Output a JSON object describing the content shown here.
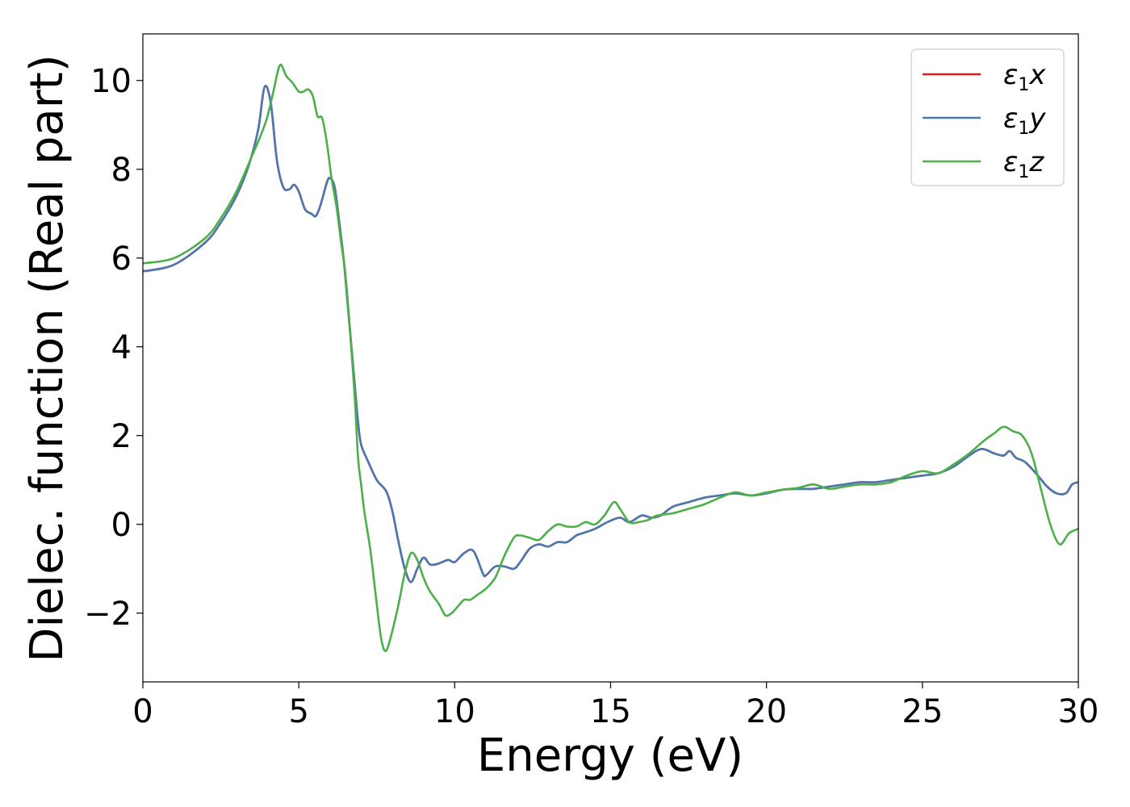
{
  "chart_data": {
    "type": "line",
    "title": "",
    "xlabel": "Energy (eV)",
    "ylabel": "Dielec. function (Real part)",
    "xlim": [
      0,
      30
    ],
    "ylim": [
      -3.55,
      11.05
    ],
    "xticks": [
      0,
      5,
      10,
      15,
      20,
      25,
      30
    ],
    "xtick_labels": [
      "0",
      "5",
      "10",
      "15",
      "20",
      "25",
      "30"
    ],
    "yticks": [
      -2,
      0,
      2,
      4,
      6,
      8,
      10
    ],
    "ytick_labels": [
      "−2",
      "0",
      "2",
      "4",
      "6",
      "8",
      "10"
    ],
    "grid": false,
    "legend_position": "top-right",
    "series": [
      {
        "name": "ε1x",
        "legend_symbol": "ε",
        "legend_sub": "1",
        "legend_var": "x",
        "color": "#e41a1c",
        "x": [
          0,
          1,
          2,
          2.5,
          3,
          3.4,
          3.7,
          3.9,
          4.1,
          4.3,
          4.5,
          4.7,
          4.85,
          5.0,
          5.2,
          5.4,
          5.55,
          5.7,
          5.9,
          6.0,
          6.15,
          6.3,
          6.45,
          6.6,
          6.75,
          6.9,
          7.0,
          7.2,
          7.5,
          7.8,
          8.0,
          8.2,
          8.4,
          8.6,
          8.8,
          9.0,
          9.2,
          9.4,
          9.6,
          9.8,
          10.0,
          10.3,
          10.6,
          10.9,
          11.0,
          11.3,
          11.6,
          11.9,
          12.1,
          12.4,
          12.7,
          13.0,
          13.3,
          13.6,
          13.9,
          14.1,
          14.5,
          14.9,
          15.3,
          15.6,
          16.0,
          16.3,
          16.6,
          17.0,
          17.5,
          18.0,
          18.5,
          19.0,
          19.5,
          20.0,
          20.5,
          21.0,
          21.5,
          22.0,
          22.5,
          23.0,
          23.5,
          24.0,
          24.5,
          25.0,
          25.5,
          26.0,
          26.5,
          26.9,
          27.3,
          27.6,
          27.8,
          28.0,
          28.3,
          28.7,
          29.0,
          29.3,
          29.6,
          29.8,
          30.0
        ],
        "values": [
          5.7,
          5.85,
          6.35,
          6.8,
          7.4,
          8.1,
          8.9,
          9.85,
          9.5,
          8.2,
          7.6,
          7.55,
          7.65,
          7.5,
          7.1,
          7.0,
          6.95,
          7.2,
          7.7,
          7.8,
          7.6,
          6.8,
          5.9,
          4.7,
          3.5,
          2.3,
          1.8,
          1.45,
          1.0,
          0.75,
          0.3,
          -0.4,
          -1.0,
          -1.3,
          -1.0,
          -0.75,
          -0.9,
          -0.9,
          -0.85,
          -0.8,
          -0.85,
          -0.65,
          -0.6,
          -1.1,
          -1.15,
          -0.95,
          -0.95,
          -1.0,
          -0.85,
          -0.55,
          -0.45,
          -0.5,
          -0.4,
          -0.4,
          -0.25,
          -0.2,
          -0.1,
          0.05,
          0.15,
          0.05,
          0.2,
          0.15,
          0.2,
          0.4,
          0.5,
          0.6,
          0.65,
          0.7,
          0.65,
          0.7,
          0.78,
          0.8,
          0.8,
          0.85,
          0.9,
          0.95,
          0.95,
          1.0,
          1.05,
          1.1,
          1.15,
          1.3,
          1.55,
          1.7,
          1.6,
          1.55,
          1.65,
          1.5,
          1.4,
          1.1,
          0.85,
          0.7,
          0.7,
          0.9,
          0.95
        ]
      },
      {
        "name": "ε1y",
        "legend_symbol": "ε",
        "legend_sub": "1",
        "legend_var": "y",
        "color": "#4a78b0",
        "x": [
          0,
          1,
          2,
          2.5,
          3,
          3.4,
          3.7,
          3.9,
          4.1,
          4.3,
          4.5,
          4.7,
          4.85,
          5.0,
          5.2,
          5.4,
          5.55,
          5.7,
          5.9,
          6.0,
          6.15,
          6.3,
          6.45,
          6.6,
          6.75,
          6.9,
          7.0,
          7.2,
          7.5,
          7.8,
          8.0,
          8.2,
          8.4,
          8.6,
          8.8,
          9.0,
          9.2,
          9.4,
          9.6,
          9.8,
          10.0,
          10.3,
          10.6,
          10.9,
          11.0,
          11.3,
          11.6,
          11.9,
          12.1,
          12.4,
          12.7,
          13.0,
          13.3,
          13.6,
          13.9,
          14.1,
          14.5,
          14.9,
          15.3,
          15.6,
          16.0,
          16.3,
          16.6,
          17.0,
          17.5,
          18.0,
          18.5,
          19.0,
          19.5,
          20.0,
          20.5,
          21.0,
          21.5,
          22.0,
          22.5,
          23.0,
          23.5,
          24.0,
          24.5,
          25.0,
          25.5,
          26.0,
          26.5,
          26.9,
          27.3,
          27.6,
          27.8,
          28.0,
          28.3,
          28.7,
          29.0,
          29.3,
          29.6,
          29.8,
          30.0
        ],
        "values": [
          5.7,
          5.85,
          6.35,
          6.8,
          7.4,
          8.1,
          8.9,
          9.85,
          9.5,
          8.2,
          7.6,
          7.55,
          7.65,
          7.5,
          7.1,
          7.0,
          6.95,
          7.2,
          7.7,
          7.8,
          7.6,
          6.8,
          5.9,
          4.7,
          3.5,
          2.3,
          1.8,
          1.45,
          1.0,
          0.75,
          0.3,
          -0.4,
          -1.0,
          -1.3,
          -1.0,
          -0.75,
          -0.9,
          -0.9,
          -0.85,
          -0.8,
          -0.85,
          -0.65,
          -0.6,
          -1.1,
          -1.15,
          -0.95,
          -0.95,
          -1.0,
          -0.85,
          -0.55,
          -0.45,
          -0.5,
          -0.4,
          -0.4,
          -0.25,
          -0.2,
          -0.1,
          0.05,
          0.15,
          0.05,
          0.2,
          0.15,
          0.2,
          0.4,
          0.5,
          0.6,
          0.65,
          0.7,
          0.65,
          0.7,
          0.78,
          0.8,
          0.8,
          0.85,
          0.9,
          0.95,
          0.95,
          1.0,
          1.05,
          1.1,
          1.15,
          1.3,
          1.55,
          1.7,
          1.6,
          1.55,
          1.65,
          1.5,
          1.4,
          1.1,
          0.85,
          0.7,
          0.7,
          0.9,
          0.95
        ]
      },
      {
        "name": "ε1z",
        "legend_symbol": "ε",
        "legend_sub": "1",
        "legend_var": "z",
        "color": "#4daf4a",
        "x": [
          0,
          1,
          2,
          2.5,
          3,
          3.5,
          3.8,
          4.0,
          4.2,
          4.4,
          4.6,
          4.8,
          5.0,
          5.15,
          5.3,
          5.45,
          5.6,
          5.75,
          5.9,
          6.05,
          6.2,
          6.35,
          6.5,
          6.65,
          6.8,
          6.9,
          7.0,
          7.1,
          7.3,
          7.5,
          7.65,
          7.8,
          8.0,
          8.2,
          8.4,
          8.6,
          8.8,
          9.0,
          9.2,
          9.5,
          9.7,
          9.9,
          10.1,
          10.3,
          10.5,
          10.7,
          11.0,
          11.3,
          11.6,
          11.9,
          12.1,
          12.4,
          12.7,
          13.0,
          13.3,
          13.6,
          13.9,
          14.2,
          14.5,
          14.8,
          15.1,
          15.3,
          15.6,
          15.9,
          16.2,
          16.5,
          17.0,
          17.5,
          18.0,
          18.5,
          19.0,
          19.5,
          20.0,
          20.5,
          21.0,
          21.5,
          22.0,
          22.5,
          23.0,
          23.5,
          24.0,
          24.5,
          25.0,
          25.5,
          26.0,
          26.5,
          27.0,
          27.3,
          27.6,
          27.9,
          28.2,
          28.5,
          28.8,
          29.1,
          29.4,
          29.7,
          30.0
        ],
        "values": [
          5.88,
          6.0,
          6.45,
          6.9,
          7.5,
          8.3,
          8.8,
          9.2,
          9.8,
          10.35,
          10.1,
          9.95,
          9.75,
          9.75,
          9.8,
          9.65,
          9.2,
          9.15,
          8.6,
          7.8,
          7.2,
          6.4,
          5.6,
          4.3,
          2.8,
          1.5,
          0.9,
          0.3,
          -0.6,
          -1.8,
          -2.6,
          -2.85,
          -2.4,
          -1.8,
          -1.1,
          -0.65,
          -0.8,
          -1.2,
          -1.5,
          -1.8,
          -2.05,
          -2.0,
          -1.85,
          -1.7,
          -1.7,
          -1.6,
          -1.45,
          -1.2,
          -0.7,
          -0.3,
          -0.25,
          -0.3,
          -0.35,
          -0.15,
          0.0,
          -0.05,
          -0.05,
          0.05,
          0.0,
          0.2,
          0.5,
          0.35,
          0.05,
          0.05,
          0.1,
          0.2,
          0.25,
          0.35,
          0.45,
          0.6,
          0.72,
          0.65,
          0.72,
          0.78,
          0.82,
          0.9,
          0.8,
          0.85,
          0.9,
          0.9,
          0.95,
          1.1,
          1.2,
          1.15,
          1.35,
          1.6,
          1.9,
          2.05,
          2.2,
          2.1,
          2.0,
          1.6,
          0.8,
          0.0,
          -0.45,
          -0.2,
          -0.1
        ]
      }
    ]
  }
}
